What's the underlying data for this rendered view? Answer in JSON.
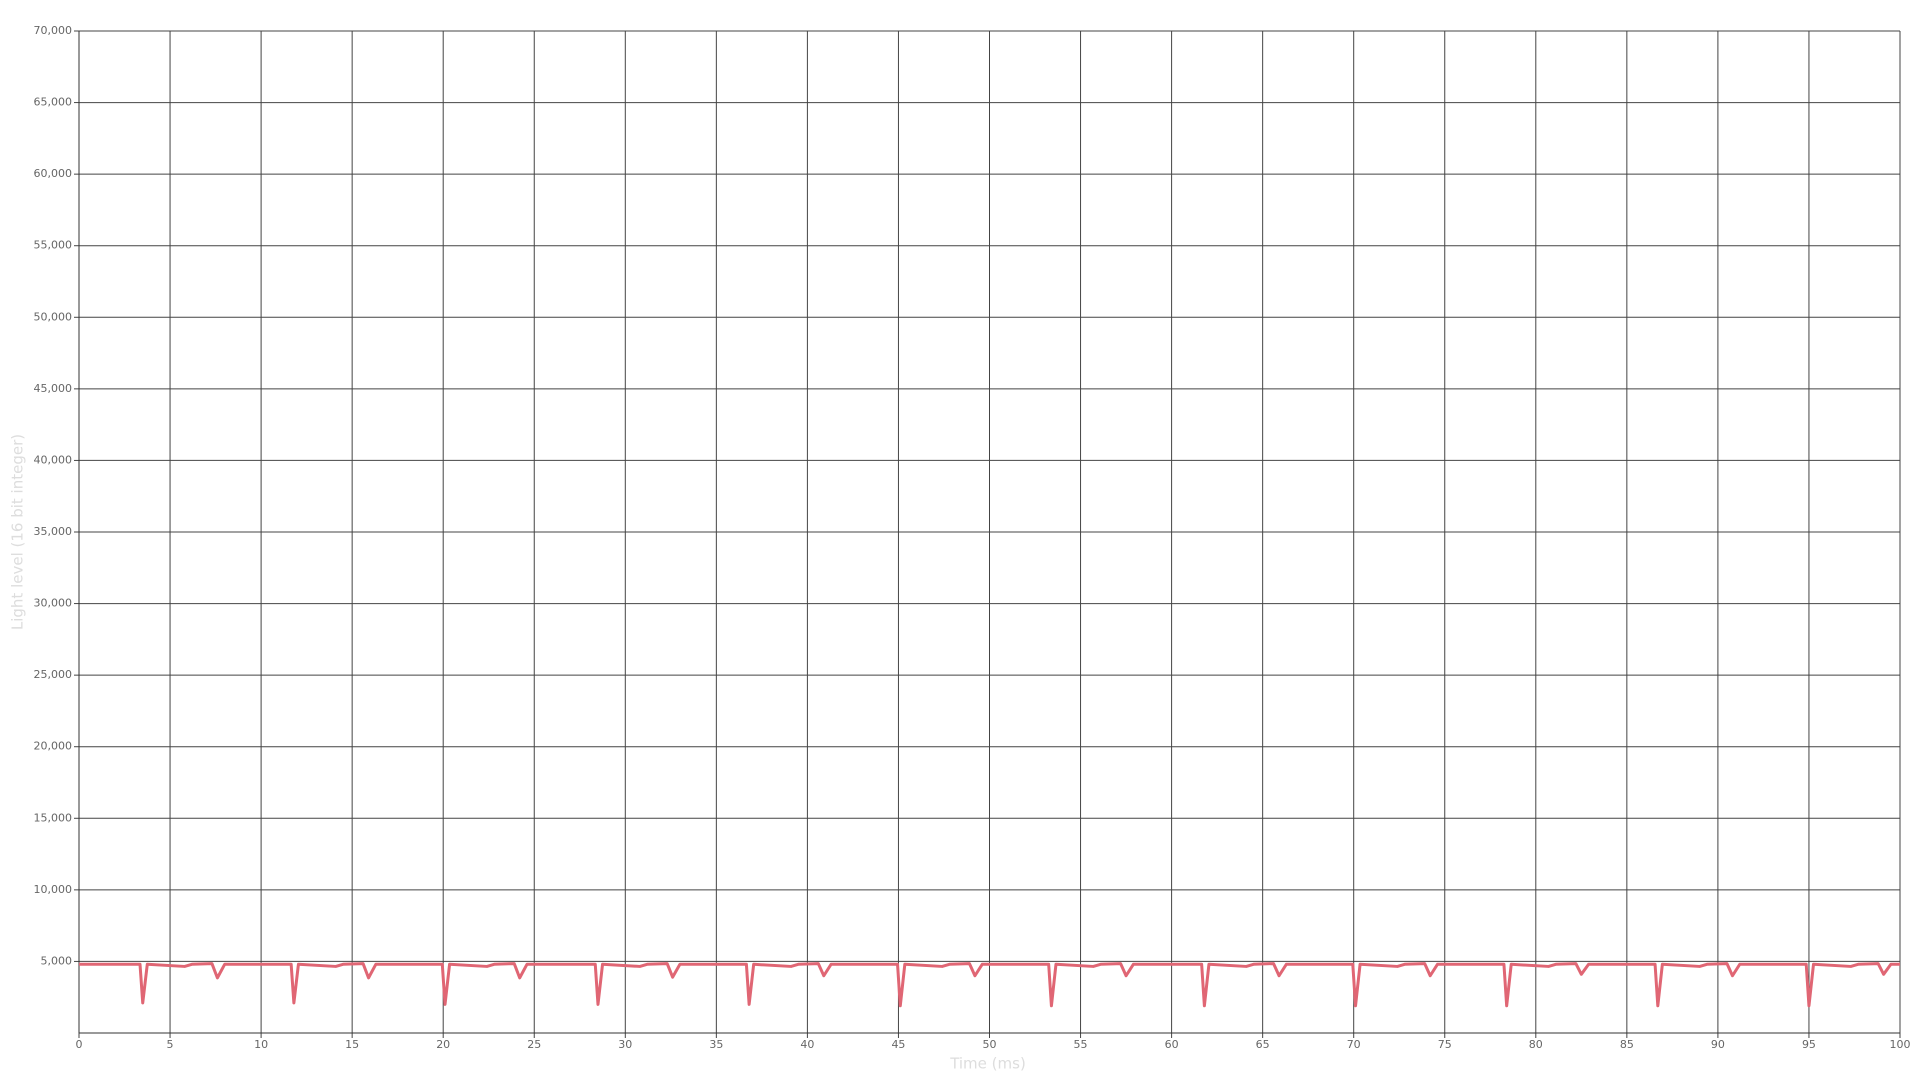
{
  "chart_data": {
    "type": "line",
    "x_label": "Time (ms)",
    "y_label": "Light level (16 bit integer)",
    "xlim": [
      0,
      100
    ],
    "ylim": [
      0,
      70000
    ],
    "xticks": [
      0,
      5,
      10,
      15,
      20,
      25,
      30,
      35,
      40,
      45,
      50,
      55,
      60,
      65,
      70,
      75,
      80,
      85,
      90,
      95,
      100
    ],
    "yticks": [
      {
        "value": 5000,
        "label": "5,000"
      },
      {
        "value": 10000,
        "label": "10,000"
      },
      {
        "value": 15000,
        "label": "15,000"
      },
      {
        "value": 20000,
        "label": "20,000"
      },
      {
        "value": 25000,
        "label": "25,000"
      },
      {
        "value": 30000,
        "label": "30,000"
      },
      {
        "value": 35000,
        "label": "35,000"
      },
      {
        "value": 40000,
        "label": "40,000"
      },
      {
        "value": 45000,
        "label": "45,000"
      },
      {
        "value": 50000,
        "label": "50,000"
      },
      {
        "value": 55000,
        "label": "55,000"
      },
      {
        "value": 60000,
        "label": "60,000"
      },
      {
        "value": 65000,
        "label": "65,000"
      },
      {
        "value": 70000,
        "label": "70,000"
      }
    ],
    "grid": true,
    "x": [
      0,
      3.35,
      3.5,
      3.75,
      5.8,
      6.2,
      7.3,
      7.6,
      8.0,
      11.65,
      11.8,
      12.05,
      14.1,
      14.5,
      15.6,
      15.9,
      16.3,
      19.95,
      20.1,
      20.35,
      22.4,
      22.8,
      23.9,
      24.2,
      24.6,
      28.35,
      28.5,
      28.75,
      30.8,
      31.2,
      32.3,
      32.6,
      33.0,
      36.65,
      36.8,
      37.05,
      39.1,
      39.5,
      40.6,
      40.9,
      41.3,
      44.95,
      45.1,
      45.35,
      47.4,
      47.8,
      48.9,
      49.2,
      49.6,
      53.25,
      53.4,
      53.65,
      55.7,
      56.1,
      57.2,
      57.5,
      57.9,
      61.65,
      61.8,
      62.05,
      64.1,
      64.5,
      65.6,
      65.9,
      66.3,
      69.95,
      70.1,
      70.35,
      72.4,
      72.8,
      73.9,
      74.2,
      74.6,
      78.25,
      78.4,
      78.65,
      80.7,
      81.1,
      82.2,
      82.5,
      82.9,
      86.55,
      86.7,
      86.95,
      89.0,
      89.4,
      90.5,
      90.8,
      91.2,
      94.85,
      95.0,
      95.25,
      97.3,
      97.7,
      98.8,
      99.1,
      99.5,
      100
    ],
    "series": [
      {
        "color": "#e06674",
        "values": [
          4800,
          4800,
          2100,
          4800,
          4650,
          4800,
          4850,
          3850,
          4800,
          4800,
          2100,
          4800,
          4650,
          4800,
          4850,
          3850,
          4800,
          4800,
          2000,
          4800,
          4650,
          4800,
          4850,
          3850,
          4800,
          4800,
          2000,
          4800,
          4650,
          4800,
          4850,
          3900,
          4800,
          4800,
          2000,
          4800,
          4650,
          4800,
          4850,
          4000,
          4800,
          4800,
          1900,
          4800,
          4650,
          4800,
          4850,
          4000,
          4800,
          4800,
          1900,
          4800,
          4650,
          4800,
          4850,
          4000,
          4800,
          4800,
          1900,
          4800,
          4650,
          4800,
          4850,
          4000,
          4800,
          4800,
          1900,
          4800,
          4650,
          4800,
          4850,
          4000,
          4800,
          4800,
          1900,
          4800,
          4650,
          4800,
          4850,
          4100,
          4800,
          4800,
          1900,
          4800,
          4650,
          4800,
          4850,
          4000,
          4800,
          4800,
          1900,
          4800,
          4650,
          4800,
          4850,
          4100,
          4800,
          4800
        ]
      }
    ]
  }
}
